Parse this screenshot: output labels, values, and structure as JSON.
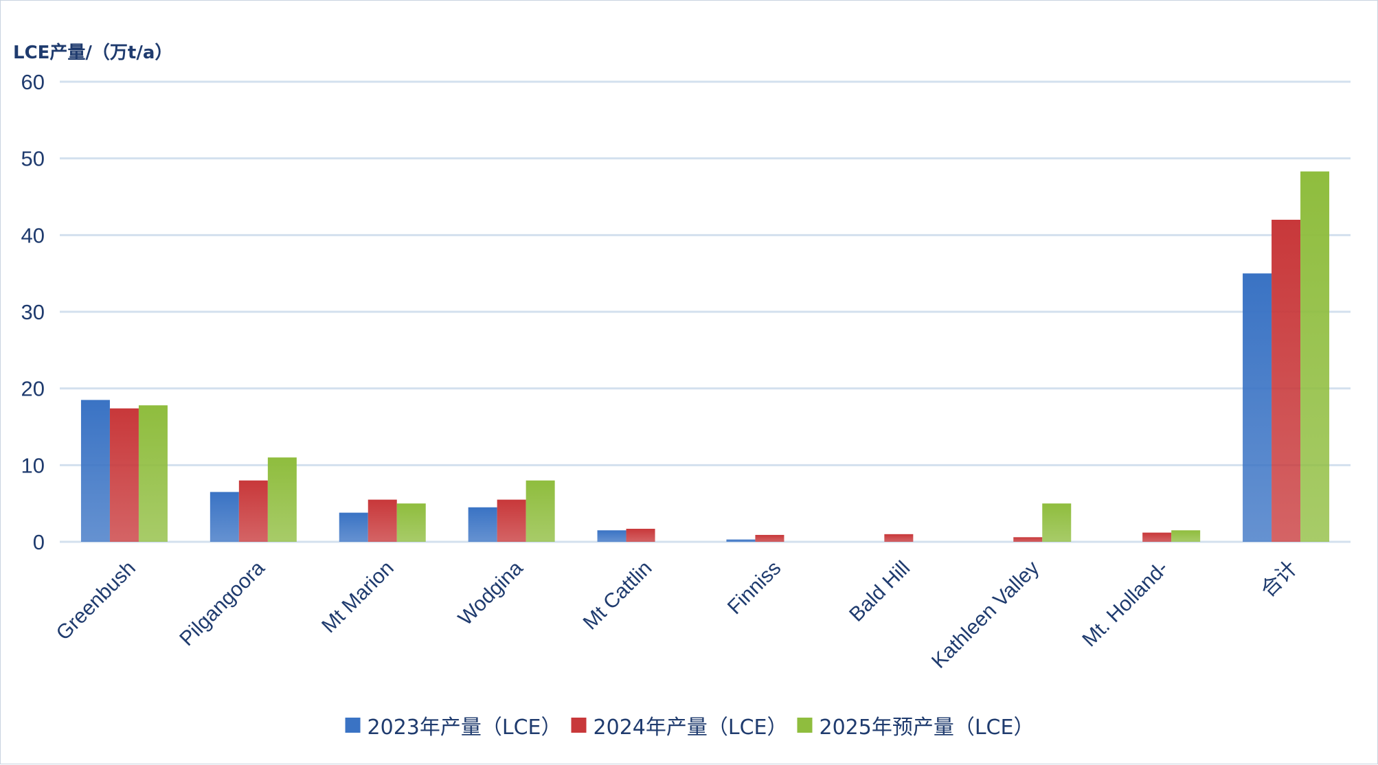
{
  "chart_data": {
    "type": "bar",
    "ylabel": "LCE产量/（万t/a）",
    "xlabel": "",
    "ylim": [
      0,
      60
    ],
    "yticks": [
      "0",
      "10",
      "20",
      "30",
      "40",
      "50",
      "60"
    ],
    "grid": true,
    "legend_position": "bottom",
    "categories": [
      "Greenbush",
      "Pilgangoora",
      "Mt Marion",
      "Wodgina",
      "Mt Cattlin",
      "Finniss",
      "Bald Hill",
      "Kathleen Valley",
      "Mt. Holland-",
      "合计"
    ],
    "series": [
      {
        "name": "2023年产量（LCE）",
        "color": "#3a73c4",
        "values": [
          18.5,
          6.5,
          3.8,
          4.5,
          1.5,
          0.3,
          0,
          0,
          0,
          35
        ]
      },
      {
        "name": "2024年产量（LCE）",
        "color": "#c8383a",
        "values": [
          17.4,
          8,
          5.5,
          5.5,
          1.7,
          0.9,
          1,
          0.6,
          1.2,
          42
        ]
      },
      {
        "name": "2025年预产量（LCE）",
        "color": "#8fbd3e",
        "values": [
          17.8,
          11,
          5,
          8,
          0,
          0,
          0,
          5,
          1.5,
          48.3
        ]
      }
    ]
  }
}
